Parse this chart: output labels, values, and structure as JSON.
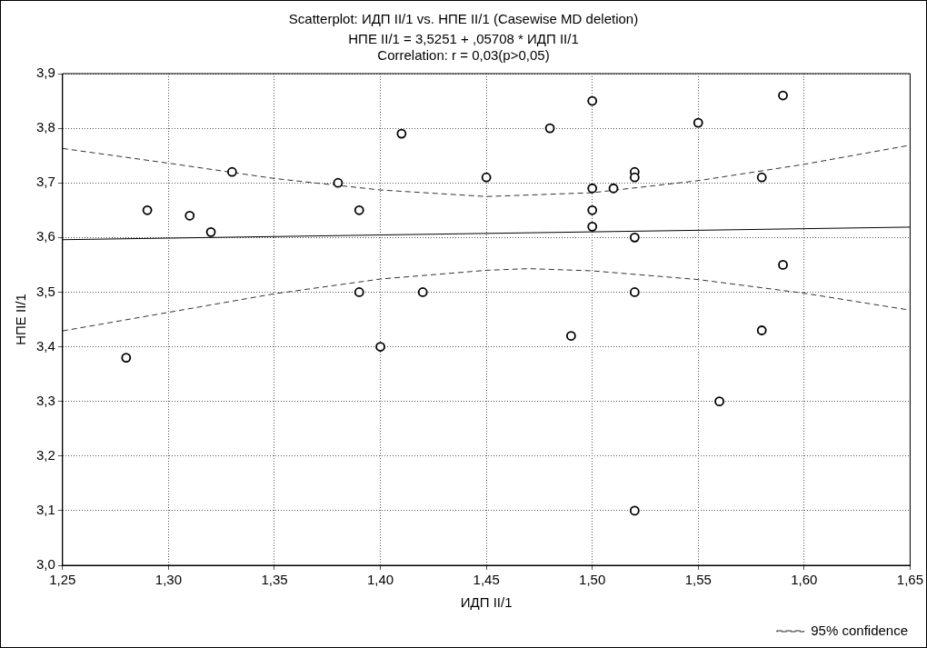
{
  "chart_data": {
    "type": "scatter",
    "title": "Scatterplot: ИДП II/1 vs. НПЕ II/1 (Casewise MD deletion)",
    "subtitle": "НПЕ II/1 = 3,5251 + ,05708 * ИДП II/1",
    "annotations": [
      "Correlation: r = 0,03(p>0,05)"
    ],
    "xlabel": "ИДП II/1",
    "ylabel": "НПЕ II/1",
    "xlim": [
      1.25,
      1.65
    ],
    "xticks": [
      {
        "value": 1.25,
        "label": "1,25"
      },
      {
        "value": 1.3,
        "label": "1,30"
      },
      {
        "value": 1.35,
        "label": "1,35"
      },
      {
        "value": 1.4,
        "label": "1,40"
      },
      {
        "value": 1.45,
        "label": "1,45"
      },
      {
        "value": 1.5,
        "label": "1,50"
      },
      {
        "value": 1.55,
        "label": "1,55"
      },
      {
        "value": 1.6,
        "label": "1,60"
      },
      {
        "value": 1.65,
        "label": "1,65"
      }
    ],
    "ylim": [
      3.0,
      3.9
    ],
    "yticks": [
      {
        "value": 3.0,
        "label": "3,0"
      },
      {
        "value": 3.1,
        "label": "3,1"
      },
      {
        "value": 3.2,
        "label": "3,2"
      },
      {
        "value": 3.3,
        "label": "3,3"
      },
      {
        "value": 3.4,
        "label": "3,4"
      },
      {
        "value": 3.5,
        "label": "3,5"
      },
      {
        "value": 3.6,
        "label": "3,6"
      },
      {
        "value": 3.7,
        "label": "3,7"
      },
      {
        "value": 3.8,
        "label": "3,8"
      },
      {
        "value": 3.9,
        "label": "3,9"
      }
    ],
    "grid": true,
    "legend": "bottom right",
    "marker": "circle",
    "series": [
      {
        "type": "scatter",
        "color": "#000000",
        "x": [
          1.28,
          1.29,
          1.31,
          1.32,
          1.33,
          1.38,
          1.39,
          1.39,
          1.4,
          1.41,
          1.42,
          1.45,
          1.48,
          1.5,
          1.5,
          1.5,
          1.5,
          1.49,
          1.51,
          1.52,
          1.52,
          1.52,
          1.52,
          1.52,
          1.55,
          1.56,
          1.58,
          1.58,
          1.59,
          1.59
        ],
        "values": [
          3.38,
          3.65,
          3.64,
          3.61,
          3.72,
          3.7,
          3.65,
          3.5,
          3.4,
          3.79,
          3.5,
          3.71,
          3.8,
          3.85,
          3.69,
          3.65,
          3.62,
          3.42,
          3.69,
          3.72,
          3.71,
          3.6,
          3.5,
          3.1,
          3.81,
          3.3,
          3.71,
          3.43,
          3.86,
          3.55
        ]
      },
      {
        "type": "line",
        "color": "#000000",
        "marker": "none",
        "line_style": "solid",
        "x": [
          1.25,
          1.65
        ],
        "values": [
          3.596,
          3.619
        ]
      },
      {
        "type": "line",
        "name": "95% confidence",
        "color": "#333333",
        "marker": "none",
        "line_style": "dashed",
        "x": [
          1.25,
          1.3,
          1.35,
          1.4,
          1.45,
          1.5,
          1.55,
          1.6,
          1.65
        ],
        "values": [
          3.763,
          3.736,
          3.708,
          3.687,
          3.675,
          3.682,
          3.704,
          3.734,
          3.769
        ]
      },
      {
        "type": "line",
        "color": "#333333",
        "marker": "none",
        "line_style": "dashed",
        "x": [
          1.25,
          1.3,
          1.35,
          1.4,
          1.45,
          1.47,
          1.5,
          1.55,
          1.6,
          1.65
        ],
        "values": [
          3.429,
          3.463,
          3.497,
          3.524,
          3.54,
          3.543,
          3.539,
          3.523,
          3.498,
          3.467
        ]
      }
    ]
  }
}
